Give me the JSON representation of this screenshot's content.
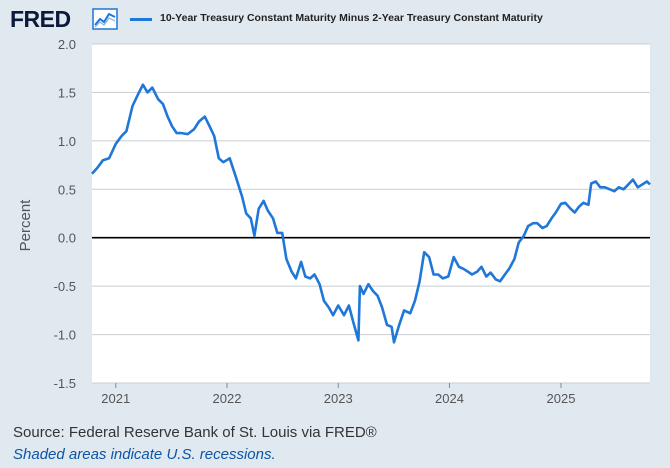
{
  "header": {
    "logo": "FRED",
    "logo_icon": "line-chart-icon",
    "series_label": "10-Year Treasury Constant Maturity Minus 2-Year Treasury Constant Maturity"
  },
  "footer": {
    "source": "Source: Federal Reserve Bank of St. Louis via FRED®",
    "note": "Shaded areas indicate U.S. recessions."
  },
  "colors": {
    "line": "#1f77d8",
    "background": "#e1e9f0",
    "plot_bg": "#ffffff"
  },
  "chart_data": {
    "type": "line",
    "title": "",
    "xlabel": "",
    "ylabel": "Percent",
    "ylim": [
      -1.5,
      2.0
    ],
    "yticks": [
      2.0,
      1.5,
      1.0,
      0.5,
      0.0,
      -0.5,
      -1.0,
      -1.5
    ],
    "ytick_labels": [
      "2.0",
      "1.5",
      "1.0",
      "0.5",
      "0.0",
      "-0.5",
      "-1.0",
      "-1.5"
    ],
    "xlim": [
      "2020-10-15",
      "2025-10-20"
    ],
    "xticks": [
      "2021-01-01",
      "2022-01-01",
      "2023-01-01",
      "2024-01-01",
      "2025-01-01"
    ],
    "xtick_labels": [
      "2021",
      "2022",
      "2023",
      "2024",
      "2025"
    ],
    "grid": true,
    "zero_line": true,
    "series": [
      {
        "name": "10-Year Treasury Constant Maturity Minus 2-Year Treasury Constant Maturity",
        "x": [
          "2020-10-15",
          "2020-11-01",
          "2020-11-20",
          "2020-12-10",
          "2021-01-01",
          "2021-01-20",
          "2021-02-05",
          "2021-02-25",
          "2021-03-15",
          "2021-03-31",
          "2021-04-15",
          "2021-05-01",
          "2021-05-20",
          "2021-06-05",
          "2021-06-20",
          "2021-07-05",
          "2021-07-20",
          "2021-08-05",
          "2021-08-25",
          "2021-09-15",
          "2021-10-01",
          "2021-10-20",
          "2021-11-05",
          "2021-11-20",
          "2021-12-05",
          "2021-12-20",
          "2022-01-10",
          "2022-01-31",
          "2022-02-20",
          "2022-03-05",
          "2022-03-20",
          "2022-04-01",
          "2022-04-15",
          "2022-05-01",
          "2022-05-15",
          "2022-06-01",
          "2022-06-15",
          "2022-07-01",
          "2022-07-15",
          "2022-08-01",
          "2022-08-15",
          "2022-09-01",
          "2022-09-15",
          "2022-10-01",
          "2022-10-15",
          "2022-11-01",
          "2022-11-15",
          "2022-12-01",
          "2022-12-15",
          "2023-01-01",
          "2023-01-20",
          "2023-02-05",
          "2023-02-20",
          "2023-03-08",
          "2023-03-13",
          "2023-03-25",
          "2023-04-10",
          "2023-04-25",
          "2023-05-10",
          "2023-05-25",
          "2023-06-10",
          "2023-06-25",
          "2023-07-03",
          "2023-07-20",
          "2023-08-05",
          "2023-08-25",
          "2023-09-10",
          "2023-09-25",
          "2023-10-10",
          "2023-10-26",
          "2023-11-10",
          "2023-11-25",
          "2023-12-10",
          "2023-12-28",
          "2024-01-15",
          "2024-02-01",
          "2024-02-15",
          "2024-03-01",
          "2024-03-15",
          "2024-04-01",
          "2024-04-15",
          "2024-05-01",
          "2024-05-15",
          "2024-06-01",
          "2024-06-15",
          "2024-07-01",
          "2024-07-15",
          "2024-08-01",
          "2024-08-15",
          "2024-09-01",
          "2024-09-15",
          "2024-10-01",
          "2024-10-15",
          "2024-11-01",
          "2024-11-15",
          "2024-12-01",
          "2024-12-15",
          "2025-01-01",
          "2025-01-15",
          "2025-02-01",
          "2025-02-15",
          "2025-03-01",
          "2025-03-15",
          "2025-04-01",
          "2025-04-10",
          "2025-04-25",
          "2025-05-10",
          "2025-05-25",
          "2025-06-10",
          "2025-06-25",
          "2025-07-10",
          "2025-07-25",
          "2025-08-10",
          "2025-08-25",
          "2025-09-10",
          "2025-09-25",
          "2025-10-10",
          "2025-10-20"
        ],
        "values": [
          0.66,
          0.72,
          0.8,
          0.82,
          0.97,
          1.05,
          1.1,
          1.36,
          1.48,
          1.58,
          1.5,
          1.55,
          1.43,
          1.38,
          1.25,
          1.15,
          1.08,
          1.08,
          1.07,
          1.12,
          1.2,
          1.25,
          1.15,
          1.05,
          0.82,
          0.78,
          0.82,
          0.62,
          0.42,
          0.25,
          0.2,
          0.02,
          0.3,
          0.38,
          0.28,
          0.2,
          0.05,
          0.05,
          -0.22,
          -0.35,
          -0.42,
          -0.25,
          -0.4,
          -0.42,
          -0.38,
          -0.48,
          -0.65,
          -0.72,
          -0.8,
          -0.7,
          -0.8,
          -0.7,
          -0.88,
          -1.06,
          -0.5,
          -0.58,
          -0.48,
          -0.55,
          -0.6,
          -0.72,
          -0.9,
          -0.92,
          -1.08,
          -0.9,
          -0.75,
          -0.78,
          -0.65,
          -0.45,
          -0.15,
          -0.2,
          -0.38,
          -0.38,
          -0.42,
          -0.4,
          -0.2,
          -0.3,
          -0.32,
          -0.35,
          -0.38,
          -0.35,
          -0.3,
          -0.4,
          -0.36,
          -0.43,
          -0.45,
          -0.38,
          -0.32,
          -0.22,
          -0.05,
          0.02,
          0.12,
          0.15,
          0.15,
          0.1,
          0.12,
          0.2,
          0.26,
          0.35,
          0.36,
          0.3,
          0.26,
          0.32,
          0.36,
          0.34,
          0.56,
          0.58,
          0.52,
          0.52,
          0.5,
          0.48,
          0.52,
          0.5,
          0.55,
          0.6,
          0.52,
          0.55,
          0.58,
          0.55
        ]
      }
    ]
  }
}
